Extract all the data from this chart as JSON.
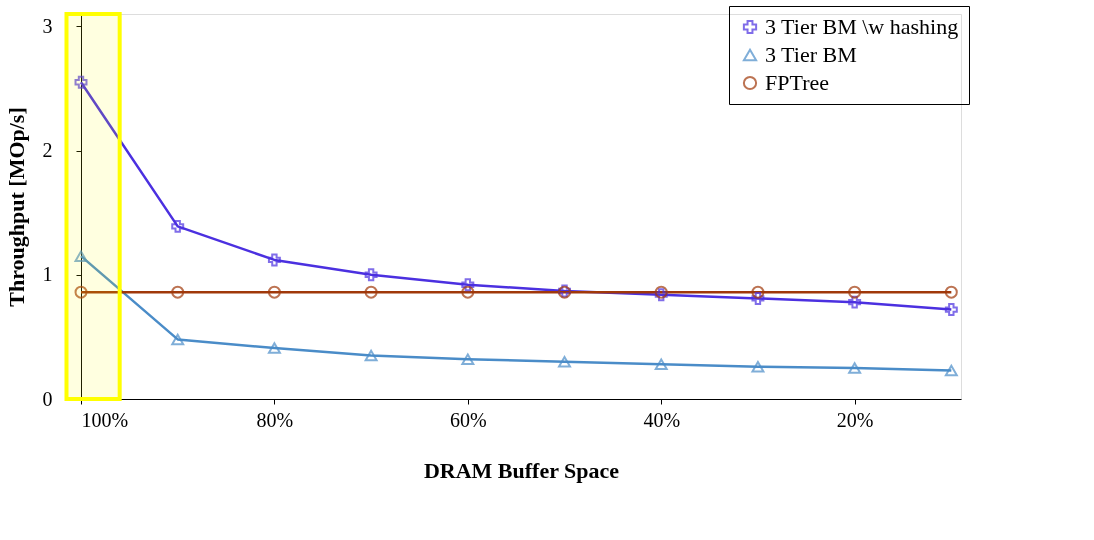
{
  "chart_data": {
    "type": "line",
    "xlabel": "DRAM Buffer Space",
    "ylabel": "Throughput [MOp/s]",
    "x": [
      100,
      90,
      80,
      70,
      60,
      50,
      40,
      30,
      20,
      10
    ],
    "series": [
      {
        "name": "3 Tier BM \\w hashing",
        "color": "#4b30e0",
        "marker": "cross",
        "values": [
          2.55,
          1.39,
          1.12,
          1.0,
          0.92,
          0.87,
          0.84,
          0.81,
          0.78,
          0.72
        ]
      },
      {
        "name": "3 Tier BM",
        "color": "#4a8cc8",
        "marker": "triangle",
        "values": [
          1.15,
          0.48,
          0.41,
          0.35,
          0.32,
          0.3,
          0.28,
          0.26,
          0.25,
          0.23
        ]
      },
      {
        "name": "FPTree",
        "color": "#a0380a",
        "marker": "circle",
        "values": [
          0.86,
          0.86,
          0.86,
          0.86,
          0.86,
          0.86,
          0.86,
          0.86,
          0.86,
          0.86
        ]
      }
    ],
    "xlim": [
      100,
      9
    ],
    "ylim": [
      0,
      3.1
    ],
    "xticks": [
      {
        "value": 100,
        "label": "100%"
      },
      {
        "value": 80,
        "label": "80%"
      },
      {
        "value": 60,
        "label": "60%"
      },
      {
        "value": 40,
        "label": "40%"
      },
      {
        "value": 20,
        "label": "20%"
      }
    ],
    "yticks": [
      0,
      1,
      2,
      3
    ],
    "bands": [
      {
        "axis": "x",
        "from": 101.5,
        "to": 96,
        "color": "#ffff00"
      }
    ],
    "grid": false,
    "legend": "top right",
    "line_style": "solid"
  }
}
